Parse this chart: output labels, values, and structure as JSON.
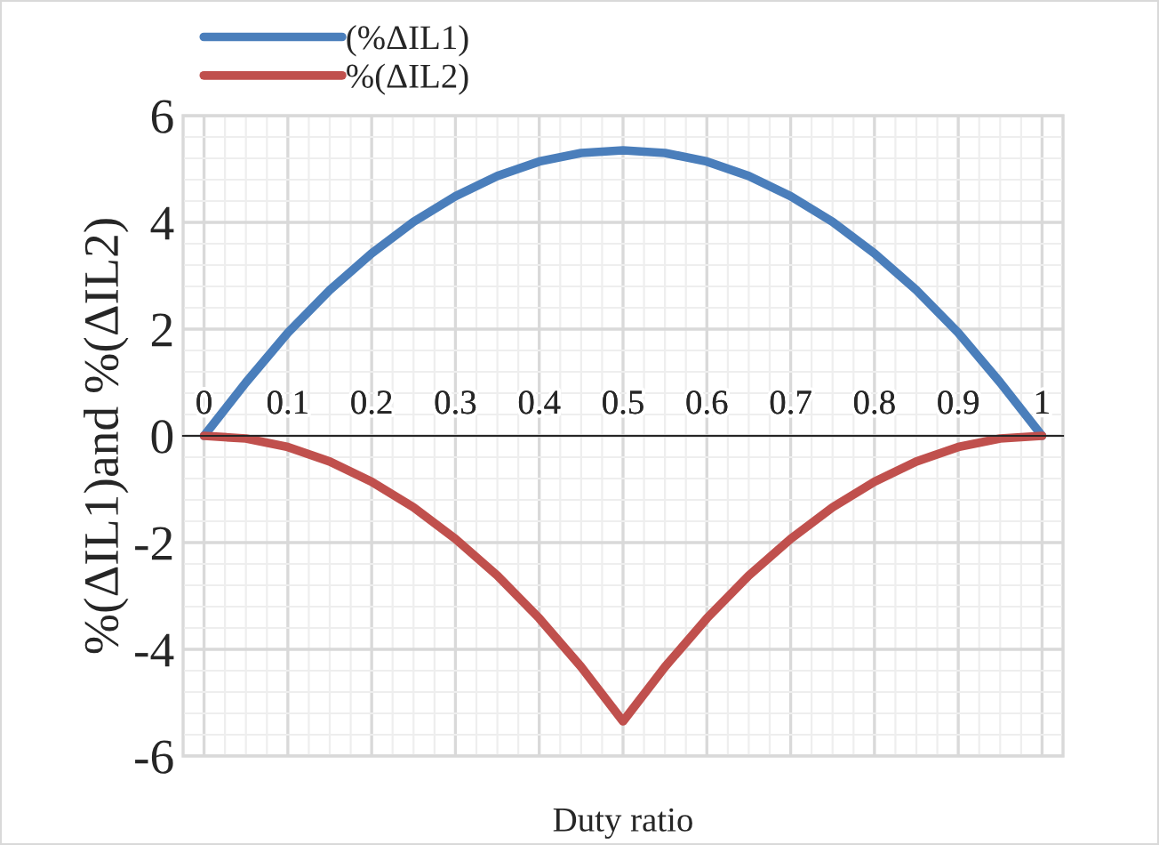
{
  "chart_data": {
    "type": "line",
    "xlabel": "Duty ratio",
    "ylabel": "%(ΔIL1)and %(ΔIL2)",
    "x": [
      0,
      0.05,
      0.1,
      0.15,
      0.2,
      0.25,
      0.3,
      0.35,
      0.4,
      0.45,
      0.5,
      0.55,
      0.6,
      0.65,
      0.7,
      0.75,
      0.8,
      0.85,
      0.9,
      0.95,
      1
    ],
    "series": [
      {
        "name": "(%ΔIL1)",
        "color": "#4a7ebb",
        "values": [
          0,
          1.0,
          1.93,
          2.73,
          3.42,
          4.01,
          4.49,
          4.87,
          5.14,
          5.3,
          5.35,
          5.3,
          5.14,
          4.87,
          4.49,
          4.01,
          3.42,
          2.73,
          1.93,
          1.0,
          0
        ]
      },
      {
        "name": "%(ΔIL2)",
        "color": "#c0504d",
        "values": [
          0,
          -0.05,
          -0.21,
          -0.48,
          -0.86,
          -1.34,
          -1.93,
          -2.62,
          -3.42,
          -4.33,
          -5.35,
          -4.33,
          -3.42,
          -2.62,
          -1.93,
          -1.34,
          -0.86,
          -0.48,
          -0.21,
          -0.05,
          0
        ]
      }
    ],
    "xlim": [
      -0.025,
      1.025
    ],
    "ylim": [
      -6,
      6
    ],
    "xticks": [
      0,
      0.1,
      0.2,
      0.3,
      0.4,
      0.5,
      0.6,
      0.7,
      0.8,
      0.9,
      1
    ],
    "yticks": [
      -6,
      -4,
      -2,
      0,
      2,
      4,
      6
    ],
    "grid": true,
    "legend": "top left",
    "marker": "none",
    "line_style": "solid"
  }
}
